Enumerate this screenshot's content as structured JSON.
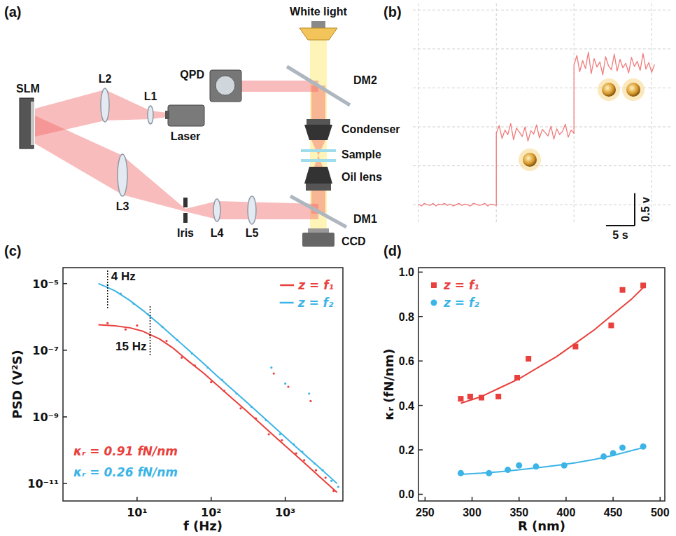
{
  "diagram": {
    "panel": "(a)",
    "components": [
      "White light",
      "QPD",
      "DM2",
      "SLM",
      "L2",
      "L1",
      "Laser",
      "Condenser",
      "Sample",
      "Oil lens",
      "L3",
      "Iris",
      "L4",
      "L5",
      "DM1",
      "CCD"
    ]
  },
  "chart_data": [
    {
      "type": "line",
      "panel": "(b)",
      "color": "#f07a7a",
      "grid": true,
      "tick_labels": false,
      "xlim": [
        -1,
        44
      ],
      "ylim": [
        -0.3,
        3.1
      ],
      "xticks": [
        0,
        13.5,
        27,
        40.5
      ],
      "yticks": [
        0,
        0.6,
        1.2,
        1.8,
        2.4,
        3.0
      ],
      "x": [
        0,
        0.5,
        1,
        1.5,
        2,
        2.5,
        3,
        3.5,
        4,
        4.5,
        5,
        5.5,
        6,
        6.5,
        7,
        7.5,
        8,
        8.5,
        9,
        9.5,
        10,
        10.5,
        11,
        11.5,
        12,
        12.5,
        13,
        13.5,
        13.5,
        14,
        14.5,
        15,
        15.5,
        16,
        16.5,
        17,
        17.5,
        18,
        18.5,
        19,
        19.5,
        20,
        20.5,
        21,
        21.5,
        22,
        22.5,
        23,
        23.5,
        24,
        24.5,
        25,
        25.5,
        26,
        26.5,
        27,
        27,
        27.5,
        28,
        28.5,
        29,
        29.5,
        30,
        30.5,
        31,
        31.5,
        32,
        32.5,
        33,
        33.5,
        34,
        34.5,
        35,
        35.5,
        36,
        36.5,
        37,
        37.5,
        38,
        38.5,
        39,
        39.5,
        40,
        40.5,
        41
      ],
      "values": [
        0.01,
        -0.02,
        0.02,
        0,
        -0.01,
        0.02,
        -0.02,
        0.01,
        0,
        0.02,
        -0.01,
        0.01,
        -0.02,
        0,
        0.02,
        -0.01,
        0.01,
        0,
        -0.02,
        0.02,
        0.01,
        -0.01,
        0,
        0.02,
        -0.02,
        0.01,
        0,
        -0.01,
        1.1,
        1.22,
        1.02,
        1.15,
        1.08,
        1.25,
        1.0,
        1.18,
        1.12,
        1.05,
        1.2,
        0.98,
        1.14,
        1.09,
        1.23,
        1.03,
        1.16,
        1.11,
        1.06,
        1.21,
        1.01,
        1.17,
        1.08,
        1.13,
        1.24,
        1.04,
        1.15,
        1.1,
        2.15,
        2.3,
        2.05,
        2.22,
        2.1,
        2.35,
        2.02,
        2.25,
        2.12,
        2.2,
        2.0,
        2.28,
        2.14,
        2.08,
        2.32,
        2.06,
        2.24,
        2.11,
        2.18,
        2.03,
        2.27,
        2.13,
        2.21,
        2.07,
        2.33,
        2.09,
        2.19,
        2.04,
        2.16
      ],
      "scale_bar": {
        "x": 5,
        "x_label": "5 s",
        "y": 0.5,
        "y_label": "0.5 v"
      }
    },
    {
      "type": "line",
      "panel": "(c)",
      "log": true,
      "legend": "upper right",
      "x_label": "f (Hz)",
      "y_label": "PSD (V²S)",
      "xlim": [
        1,
        6000
      ],
      "ylim": [
        3e-12,
        3e-05
      ],
      "xticks": [
        {
          "value": 10,
          "label": "10¹"
        },
        {
          "value": 100,
          "label": "10²"
        },
        {
          "value": 1000,
          "label": "10³"
        }
      ],
      "yticks": [
        {
          "value": 1e-05,
          "label": "10⁻⁵"
        },
        {
          "value": 1e-07,
          "label": "10⁻⁷"
        },
        {
          "value": 1e-09,
          "label": "10⁻⁹"
        },
        {
          "value": 1e-11,
          "label": "10⁻¹¹"
        }
      ],
      "series": [
        {
          "name": "z = f₁",
          "type": "line",
          "color": "#e8403c",
          "x": [
            3,
            5,
            8,
            12,
            20,
            30,
            50,
            80,
            120,
            200,
            300,
            500,
            800,
            1200,
            2000,
            3000,
            5000
          ],
          "values": [
            5.8e-07,
            5.4e-07,
            4.7e-07,
            3.7e-07,
            2.2e-07,
            1.2e-07,
            4.6e-08,
            2e-08,
            9e-09,
            3.3e-09,
            1.5e-09,
            5.4e-10,
            2.1e-10,
            9.4e-11,
            3.4e-11,
            1.5e-11,
            5.4e-12
          ]
        },
        {
          "name": "z = f₂",
          "type": "line",
          "color": "#3cb4e6",
          "x": [
            3,
            5,
            8,
            12,
            20,
            30,
            50,
            80,
            120,
            200,
            300,
            500,
            800,
            1200,
            2000,
            3000,
            5000
          ],
          "values": [
            1e-05,
            6.1e-06,
            3.1e-06,
            1.56e-06,
            6e-07,
            2.7e-07,
            9.9e-08,
            3.9e-08,
            1.7e-08,
            6.2e-09,
            2.8e-09,
            1e-09,
            3.9e-10,
            1.7e-10,
            6.2e-11,
            2.8e-11,
            1e-11
          ]
        },
        {
          "type": "scatter",
          "marker": "dot",
          "color": "#e8403c",
          "x": [
            4,
            7,
            10,
            15,
            25,
            40,
            60,
            100,
            150,
            250,
            400,
            600,
            700,
            900,
            1100,
            1400,
            1800,
            2200,
            2600,
            3500,
            4500
          ],
          "values": [
            6.5e-07,
            4.2e-07,
            5.5e-07,
            2.8e-07,
            1.9e-07,
            6e-08,
            3.5e-08,
            1.1e-08,
            6e-09,
            1.8e-09,
            9e-10,
            3e-10,
            2e-08,
            2e-10,
            8e-09,
            8e-11,
            5e-11,
            3e-09,
            2.5e-11,
            1.5e-11,
            6e-12
          ]
        },
        {
          "type": "scatter",
          "marker": "dot",
          "color": "#3cb4e6",
          "x": [
            4,
            6,
            9,
            14,
            22,
            35,
            55,
            90,
            140,
            220,
            350,
            550,
            650,
            850,
            1000,
            1300,
            1700,
            2100,
            2500,
            3200,
            4200,
            5200
          ],
          "values": [
            9e-06,
            5e-06,
            2.5e-06,
            1.2e-06,
            5e-07,
            2e-07,
            8e-08,
            3e-08,
            1.3e-08,
            5e-09,
            2e-09,
            8e-10,
            3e-08,
            3e-10,
            1e-08,
            1.5e-10,
            9e-11,
            5e-09,
            4e-11,
            2.5e-11,
            1.2e-11,
            8e-12
          ]
        }
      ],
      "annotations": [
        {
          "x": 4,
          "label": "4 Hz"
        },
        {
          "x": 15,
          "label": "15 Hz"
        },
        {
          "label": "κᵣ = 0.91 fN/nm",
          "color": "#e8403c"
        },
        {
          "label": "κᵣ = 0.26 fN/nm",
          "color": "#3cb4e6"
        }
      ]
    },
    {
      "type": "scatter",
      "panel": "(d)",
      "legend": "upper left",
      "x_label": "R (nm)",
      "y_label": "κᵣ (fN/nm)",
      "xlim": [
        243,
        505
      ],
      "ylim": [
        -0.03,
        1.02
      ],
      "xticks": [
        250,
        300,
        350,
        400,
        450,
        500
      ],
      "yticks": [
        {
          "value": 0,
          "label": "0.0"
        },
        0.2,
        0.4,
        0.6,
        0.8,
        {
          "value": 1,
          "label": "1.0"
        }
      ],
      "series": [
        {
          "name": "z = f₁",
          "type": "scatter",
          "marker": "square",
          "color": "#e8403c",
          "x": [
            288,
            298,
            310,
            328,
            348,
            360,
            410,
            448,
            460,
            482
          ],
          "values": [
            0.43,
            0.44,
            0.435,
            0.44,
            0.525,
            0.61,
            0.665,
            0.76,
            0.92,
            0.94
          ]
        },
        {
          "name": "z = f₂",
          "type": "scatter",
          "marker": "circle",
          "color": "#3cb4e6",
          "x": [
            288,
            318,
            338,
            350,
            368,
            398,
            440,
            450,
            460,
            482
          ],
          "values": [
            0.095,
            0.095,
            0.11,
            0.13,
            0.125,
            0.13,
            0.17,
            0.185,
            0.21,
            0.215
          ]
        },
        {
          "type": "line",
          "color": "#e8403c",
          "x": [
            288,
            310,
            330,
            350,
            370,
            390,
            410,
            430,
            450,
            470,
            482
          ],
          "values": [
            0.41,
            0.44,
            0.48,
            0.52,
            0.57,
            0.62,
            0.68,
            0.74,
            0.81,
            0.88,
            0.93
          ]
        },
        {
          "type": "line",
          "color": "#3cb4e6",
          "x": [
            288,
            310,
            330,
            350,
            370,
            390,
            410,
            430,
            450,
            470,
            482
          ],
          "values": [
            0.09,
            0.095,
            0.102,
            0.11,
            0.12,
            0.13,
            0.142,
            0.157,
            0.175,
            0.197,
            0.21
          ]
        }
      ]
    }
  ]
}
